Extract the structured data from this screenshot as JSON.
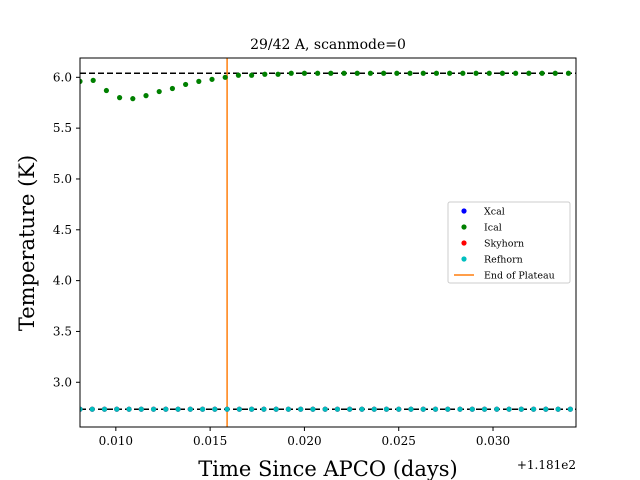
{
  "chart_data": {
    "type": "scatter",
    "title": "29/42 A, scanmode=0",
    "xlabel": "Time Since APCO (days)",
    "ylabel": "Temperature (K)",
    "x_offset_label": "+1.181e2",
    "xlim": [
      118.1081,
      118.1344
    ],
    "ylim": [
      2.56,
      6.19
    ],
    "x_ticks": [
      118.11,
      118.115,
      118.12,
      118.125,
      118.13
    ],
    "x_tick_labels": [
      "0.010",
      "0.015",
      "0.020",
      "0.025",
      "0.030"
    ],
    "y_ticks": [
      3.0,
      3.5,
      4.0,
      4.5,
      5.0,
      5.5,
      6.0
    ],
    "y_tick_labels": [
      "3.0",
      "3.5",
      "4.0",
      "4.5",
      "5.0",
      "5.5",
      "6.0"
    ],
    "grid": false,
    "legend_position": "center-right",
    "reference_lines": [
      {
        "type": "horizontal",
        "y": 6.04,
        "style": "dashed",
        "color": "#000000"
      },
      {
        "type": "horizontal",
        "y": 2.735,
        "style": "dashed",
        "color": "#000000"
      }
    ],
    "plateau_end_x": 118.1159,
    "series": [
      {
        "name": "Xcal",
        "color": "#0000ff",
        "x": [
          118.1081,
          118.10875,
          118.1094,
          118.11005,
          118.1107,
          118.11135,
          118.112,
          118.11265,
          118.1133,
          118.11395,
          118.1146,
          118.11525,
          118.1159,
          118.11655,
          118.1172,
          118.11785,
          118.1185,
          118.11915,
          118.1198,
          118.12045,
          118.1211,
          118.12175,
          118.1224,
          118.12305,
          118.1237,
          118.12435,
          118.125,
          118.12565,
          118.1263,
          118.12695,
          118.1276,
          118.12825,
          118.1289,
          118.12955,
          118.1302,
          118.13085,
          118.1315,
          118.13215,
          118.1328,
          118.13345,
          118.1341
        ],
        "y": [
          2.735,
          2.735,
          2.735,
          2.735,
          2.735,
          2.735,
          2.735,
          2.735,
          2.735,
          2.735,
          2.735,
          2.735,
          2.735,
          2.735,
          2.735,
          2.735,
          2.735,
          2.735,
          2.735,
          2.735,
          2.735,
          2.735,
          2.735,
          2.735,
          2.735,
          2.735,
          2.735,
          2.735,
          2.735,
          2.735,
          2.735,
          2.735,
          2.735,
          2.735,
          2.735,
          2.735,
          2.735,
          2.735,
          2.735,
          2.735,
          2.735
        ]
      },
      {
        "name": "Ical",
        "color": "#008000",
        "x": [
          118.1081,
          118.1088,
          118.1095,
          118.1102,
          118.1109,
          118.1116,
          118.1123,
          118.113,
          118.1137,
          118.1144,
          118.1151,
          118.1158,
          118.1165,
          118.1172,
          118.1179,
          118.1186,
          118.1193,
          118.12,
          118.1207,
          118.1214,
          118.1221,
          118.1228,
          118.1235,
          118.1242,
          118.1249,
          118.1256,
          118.1263,
          118.127,
          118.1277,
          118.1284,
          118.1291,
          118.1298,
          118.1305,
          118.1312,
          118.1319,
          118.1326,
          118.1333,
          118.134
        ],
        "y": [
          5.96,
          5.97,
          5.87,
          5.8,
          5.79,
          5.82,
          5.86,
          5.89,
          5.93,
          5.96,
          5.98,
          6.0,
          6.02,
          6.02,
          6.03,
          6.03,
          6.04,
          6.04,
          6.04,
          6.04,
          6.04,
          6.04,
          6.04,
          6.04,
          6.04,
          6.04,
          6.04,
          6.04,
          6.04,
          6.04,
          6.04,
          6.04,
          6.04,
          6.04,
          6.04,
          6.04,
          6.04,
          6.04
        ]
      },
      {
        "name": "Skyhorn",
        "color": "#ff0000",
        "x": [
          118.1081,
          118.10875,
          118.1094,
          118.11005,
          118.1107,
          118.11135,
          118.112,
          118.11265,
          118.1133,
          118.11395,
          118.1146,
          118.11525,
          118.1159,
          118.11655,
          118.1172,
          118.11785,
          118.1185,
          118.11915,
          118.1198,
          118.12045,
          118.1211,
          118.12175,
          118.1224,
          118.12305,
          118.1237,
          118.12435,
          118.125,
          118.12565,
          118.1263,
          118.12695,
          118.1276,
          118.12825,
          118.1289,
          118.12955,
          118.1302,
          118.13085,
          118.1315,
          118.13215,
          118.1328,
          118.13345,
          118.1341
        ],
        "y": [
          2.735,
          2.735,
          2.735,
          2.735,
          2.735,
          2.735,
          2.735,
          2.735,
          2.735,
          2.735,
          2.735,
          2.735,
          2.735,
          2.735,
          2.735,
          2.735,
          2.735,
          2.735,
          2.735,
          2.735,
          2.735,
          2.735,
          2.735,
          2.735,
          2.735,
          2.735,
          2.735,
          2.735,
          2.735,
          2.735,
          2.735,
          2.735,
          2.735,
          2.735,
          2.735,
          2.735,
          2.735,
          2.735,
          2.735,
          2.735,
          2.735
        ]
      },
      {
        "name": "Refhorn",
        "color": "#00bfbf",
        "x": [
          118.1081,
          118.10875,
          118.1094,
          118.11005,
          118.1107,
          118.11135,
          118.112,
          118.11265,
          118.1133,
          118.11395,
          118.1146,
          118.11525,
          118.1159,
          118.11655,
          118.1172,
          118.11785,
          118.1185,
          118.11915,
          118.1198,
          118.12045,
          118.1211,
          118.12175,
          118.1224,
          118.12305,
          118.1237,
          118.12435,
          118.125,
          118.12565,
          118.1263,
          118.12695,
          118.1276,
          118.12825,
          118.1289,
          118.12955,
          118.1302,
          118.13085,
          118.1315,
          118.13215,
          118.1328,
          118.13345,
          118.1341
        ],
        "y": [
          2.735,
          2.735,
          2.735,
          2.735,
          2.735,
          2.735,
          2.735,
          2.735,
          2.735,
          2.735,
          2.735,
          2.735,
          2.735,
          2.735,
          2.735,
          2.735,
          2.735,
          2.735,
          2.735,
          2.735,
          2.735,
          2.735,
          2.735,
          2.735,
          2.735,
          2.735,
          2.735,
          2.735,
          2.735,
          2.735,
          2.735,
          2.735,
          2.735,
          2.735,
          2.735,
          2.735,
          2.735,
          2.735,
          2.735,
          2.735,
          2.735
        ]
      }
    ],
    "plateau_label": "End of Plateau",
    "plateau_color": "#ff7f0e"
  }
}
